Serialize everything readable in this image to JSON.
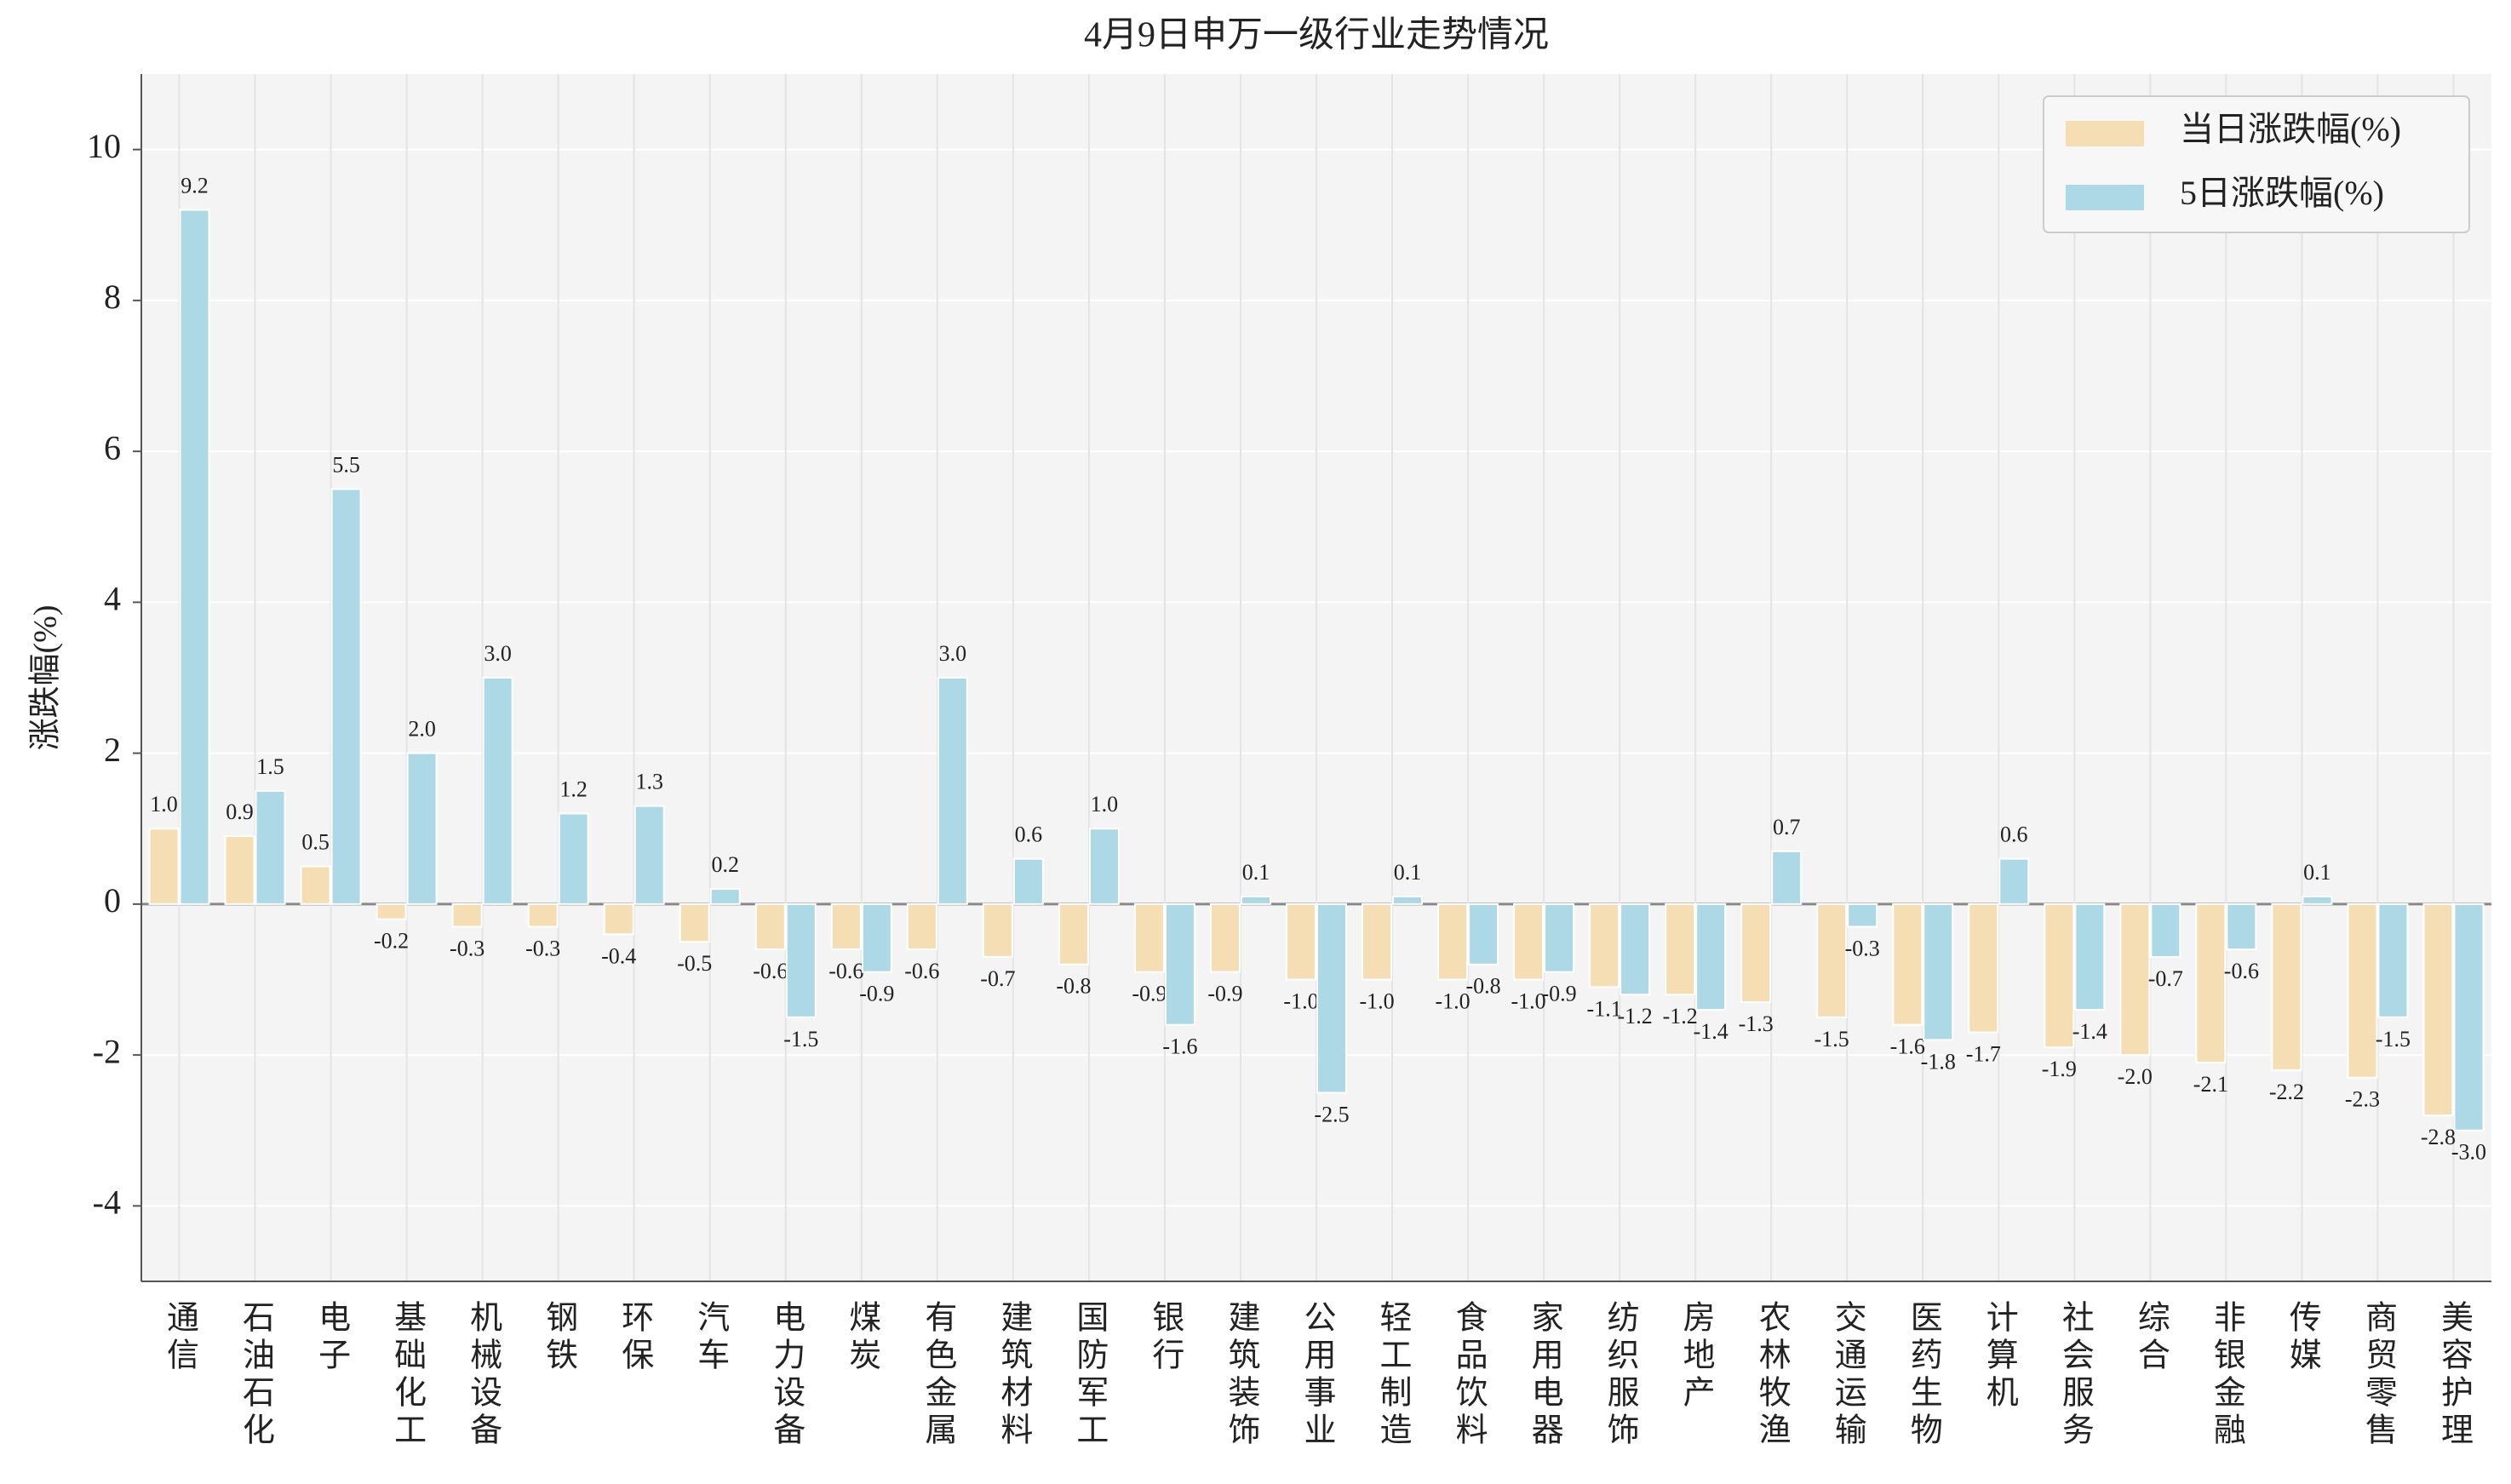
{
  "chart_data": {
    "type": "bar",
    "title": "4月9日申万一级行业走势情况",
    "y_label": "涨跌幅(%)",
    "categories": [
      "通信",
      "石油石化",
      "电子",
      "基础化工",
      "机械设备",
      "钢铁",
      "环保",
      "汽车",
      "电力设备",
      "煤炭",
      "有色金属",
      "建筑材料",
      "国防军工",
      "银行",
      "建筑装饰",
      "公用事业",
      "轻工制造",
      "食品饮料",
      "家用电器",
      "纺织服饰",
      "房地产",
      "农林牧渔",
      "交通运输",
      "医药生物",
      "计算机",
      "社会服务",
      "综合",
      "非银金融",
      "传媒",
      "商贸零售",
      "美容护理"
    ],
    "series": [
      {
        "name": "当日涨跌幅(%)",
        "color": "#f5deb3",
        "values": [
          1.0,
          0.9,
          0.5,
          -0.2,
          -0.3,
          -0.3,
          -0.4,
          -0.5,
          -0.6,
          -0.6,
          -0.6,
          -0.7,
          -0.8,
          -0.9,
          -0.9,
          -1.0,
          -1.0,
          -1.0,
          -1.0,
          -1.1,
          -1.2,
          -1.3,
          -1.5,
          -1.6,
          -1.7,
          -1.9,
          -2.0,
          -2.1,
          -2.2,
          -2.3,
          -2.8
        ],
        "value_labels": [
          "1.0",
          "0.9",
          "0.5",
          "-0.2",
          "-0.3",
          "-0.3",
          "-0.4",
          "-0.5",
          "-0.6",
          "-0.6",
          "-0.6",
          "-0.7",
          "-0.8",
          "-0.9",
          "-0.9",
          "-1.0",
          "-1.0",
          "-1.0",
          "-1.0",
          "-1.1",
          "-1.2",
          "-1.3",
          "-1.5",
          "-1.6",
          "-1.7",
          "-1.9",
          "-2.0",
          "-2.1",
          "-2.2",
          "-2.3",
          "-2.8"
        ]
      },
      {
        "name": "5日涨跌幅(%)",
        "color": "#add8e6",
        "values": [
          9.2,
          1.5,
          5.5,
          2.0,
          3.0,
          1.2,
          1.3,
          0.2,
          -1.5,
          -0.9,
          3.0,
          0.6,
          1.0,
          -1.6,
          0.1,
          -2.5,
          0.1,
          -0.8,
          -0.9,
          -1.2,
          -1.4,
          0.7,
          -0.3,
          -1.8,
          0.6,
          -1.4,
          -0.7,
          -0.6,
          0.1,
          -1.5,
          -3.0
        ],
        "value_labels": [
          "9.2",
          "1.5",
          "5.5",
          "2.0",
          "3.0",
          "1.2",
          "1.3",
          "0.2",
          "-1.5",
          "-0.9",
          "3.0",
          "0.6",
          "1.0",
          "-1.6",
          "0.1",
          "-2.5",
          "0.1",
          "-0.8",
          "-0.9",
          "-1.2",
          "-1.4",
          "0.7",
          "-0.3",
          "-1.8",
          "0.6",
          "-1.4",
          "-0.7",
          "-0.6",
          "0.1",
          "-1.5",
          "-3.0"
        ]
      }
    ],
    "ylim": [
      -5,
      11
    ],
    "yticks": [
      -4,
      -2,
      0,
      2,
      4,
      6,
      8,
      10
    ],
    "grid": true,
    "legend": "upper right"
  }
}
